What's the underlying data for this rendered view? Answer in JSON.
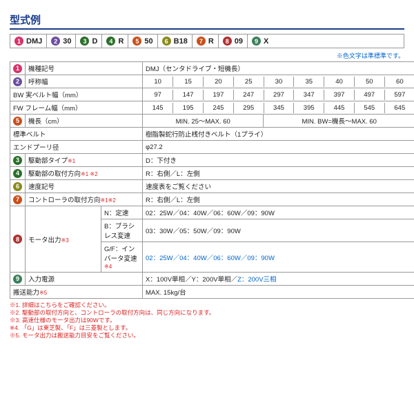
{
  "heading": "型式例",
  "note_prefix": "※",
  "note_blue": "色文字",
  "note_suffix": "は準標準です。",
  "model": [
    {
      "n": "1",
      "c": "#d6336c",
      "t": "DMJ"
    },
    {
      "n": "2",
      "c": "#6b4fa0",
      "t": "30"
    },
    {
      "n": "3",
      "c": "#2a6f2a",
      "t": "D"
    },
    {
      "n": "4",
      "c": "#2a6f2a",
      "t": "R"
    },
    {
      "n": "5",
      "c": "#c94f1a",
      "t": "50"
    },
    {
      "n": "6",
      "c": "#8a8a1a",
      "t": "B18"
    },
    {
      "n": "7",
      "c": "#c94f1a",
      "t": "R"
    },
    {
      "n": "8",
      "c": "#b03030",
      "t": "09"
    },
    {
      "n": "9",
      "c": "#3a7f5a",
      "t": "X"
    }
  ],
  "rows": {
    "r1": {
      "n": "1",
      "c": "#d6336c",
      "label": "機種記号",
      "val": "DMJ（センタドライブ・短機長）"
    },
    "r2": {
      "n": "2",
      "c": "#6b4fa0",
      "label": "呼称幅",
      "cells": [
        "10",
        "15",
        "20",
        "25",
        "30",
        "35",
        "40",
        "50",
        "60"
      ]
    },
    "r3": {
      "label": "BW 実ベルト幅（mm）",
      "cells": [
        "97",
        "147",
        "197",
        "247",
        "297",
        "347",
        "397",
        "497",
        "597"
      ]
    },
    "r4": {
      "label": "FW フレーム幅（mm）",
      "cells": [
        "145",
        "195",
        "245",
        "295",
        "345",
        "395",
        "445",
        "545",
        "645"
      ]
    },
    "r5": {
      "n": "5",
      "c": "#c94f1a",
      "label": "機長（cm）",
      "left": "MIN. 25～MAX. 60",
      "right": "MIN. BW=機長～MAX. 60"
    },
    "r6": {
      "label": "標準ベルト",
      "val": "樹脂製蛇行防止桟付きベルト（1プライ）"
    },
    "r7": {
      "label": "エンドプーリ径",
      "val": "φ27.2"
    },
    "r8": {
      "n": "3",
      "c": "#2a6f2a",
      "label": "駆動部タイプ",
      "note": "※1",
      "val": "D：下付き"
    },
    "r9": {
      "n": "4",
      "c": "#2a6f2a",
      "label": "駆動部の取付方向",
      "note": "※1 ※2",
      "val": "R：右側／L：左側"
    },
    "r10": {
      "n": "6",
      "c": "#8a8a1a",
      "label": "速度記号",
      "val": "速度表をご覧ください"
    },
    "r11": {
      "n": "7",
      "c": "#c94f1a",
      "label": "コントローラの取付方向",
      "note": "※1※2",
      "val": "R：右側／L：左側"
    },
    "r12": {
      "n": "8",
      "c": "#b03030",
      "label": "モータ出力",
      "note": "※3",
      "sub": [
        {
          "h": "N：定速",
          "v": "02：25W／04：40W／06：60W／09：90W"
        },
        {
          "h": "B：ブラシレス変速",
          "v": "03：30W／05：50W／09：90W"
        },
        {
          "h": "G/F：インバータ変速",
          "hn": "※4",
          "v": "02：25W／04：40W／06：60W／09：90W",
          "cls": "blue"
        }
      ]
    },
    "r13": {
      "n": "9",
      "c": "#3a7f5a",
      "label": "入力電源",
      "val_pre": "X：100V単相／Y：200V単相／",
      "val_blue": "Z：200V三相"
    },
    "r14": {
      "label": "搬送能力",
      "note": "※5",
      "val": "MAX. 15kg/台"
    }
  },
  "footnotes": [
    "※1. 詳細はこちらをご確認ください。",
    "※2. 駆動部の取付方向と、コントローラの取付方向は、同じ方向になります。",
    "※3. 高速仕様のモータ出力は90Wです。",
    "※4. 「G」は東芝製、「F」は三菱製とします。",
    "※5. モータ出力は搬送能力目安をご覧ください。"
  ]
}
